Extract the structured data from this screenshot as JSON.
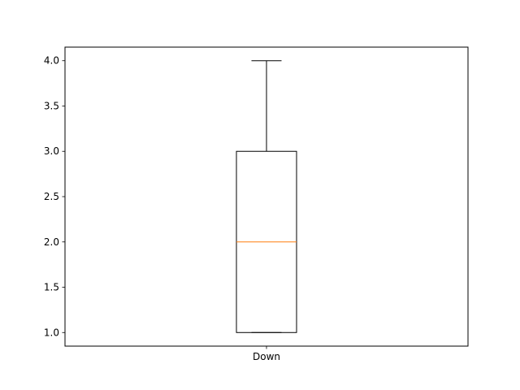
{
  "chart_data": {
    "type": "box",
    "categories": [
      "Down"
    ],
    "boxes": [
      {
        "category": "Down",
        "whisker_low": 1.0,
        "q1": 1.0,
        "median": 2.0,
        "q3": 3.0,
        "whisker_high": 4.0
      }
    ],
    "title": "",
    "xlabel": "",
    "ylabel": "",
    "ylim": [
      0.85,
      4.15
    ],
    "yticks": [
      1.0,
      1.5,
      2.0,
      2.5,
      3.0,
      3.5,
      4.0
    ],
    "ytick_labels": [
      "1.0",
      "1.5",
      "2.0",
      "2.5",
      "3.0",
      "3.5",
      "4.0"
    ],
    "grid": false,
    "colors": {
      "box": "#000000",
      "median": "#ff7f0e",
      "whisker": "#000000"
    }
  }
}
